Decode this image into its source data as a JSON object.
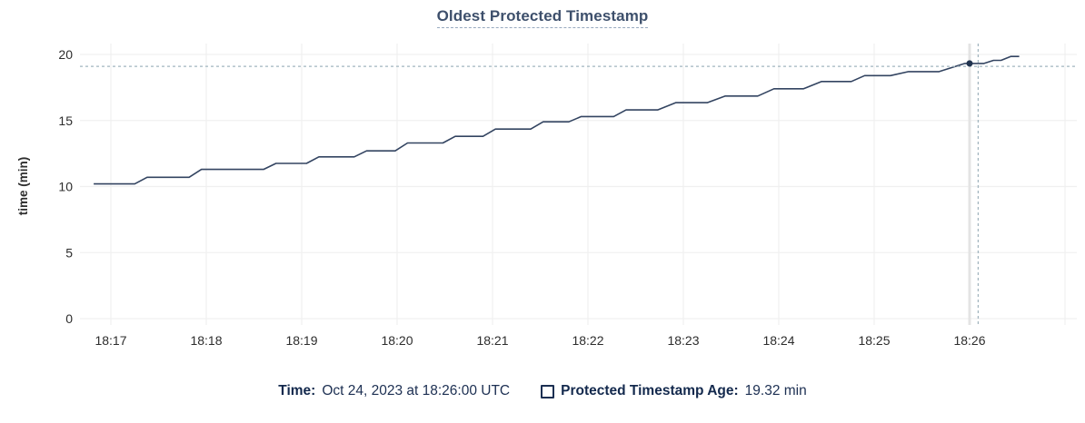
{
  "title": "Oldest Protected Timestamp",
  "colors": {
    "line": "#334461",
    "hover_dot": "#223450",
    "grid": "#f0f0f0",
    "hover_column": "#e4e4e4",
    "crosshair": "#a2b5bf",
    "axis_text": "#2d2d2d",
    "axis_title_text": "#1a1a1a",
    "title_text": "#3e506c",
    "legend_text": "#1c2f52"
  },
  "chart_data": {
    "type": "line",
    "title": "Oldest Protected Timestamp",
    "xlabel": "",
    "ylabel": "time (min)",
    "ylim": [
      0,
      20
    ],
    "y_ticks": [
      0,
      5,
      10,
      15,
      20
    ],
    "x_ticks": [
      "18:17",
      "18:18",
      "18:19",
      "18:20",
      "18:21",
      "18:22",
      "18:23",
      "18:24",
      "18:25",
      "18:26"
    ],
    "x_unit": "minutes after 18:00 UTC",
    "x_range_minutes": [
      16.82,
      26.52
    ],
    "grid": true,
    "legend_position": "bottom",
    "series": [
      {
        "name": "Protected Timestamp Age",
        "unit": "min",
        "points": [
          [
            16.82,
            10.2
          ],
          [
            17.25,
            10.2
          ],
          [
            17.38,
            10.7
          ],
          [
            17.82,
            10.7
          ],
          [
            17.95,
            11.3
          ],
          [
            18.6,
            11.3
          ],
          [
            18.73,
            11.75
          ],
          [
            19.05,
            11.75
          ],
          [
            19.18,
            12.25
          ],
          [
            19.55,
            12.25
          ],
          [
            19.68,
            12.7
          ],
          [
            19.98,
            12.7
          ],
          [
            20.11,
            13.3
          ],
          [
            20.48,
            13.3
          ],
          [
            20.61,
            13.8
          ],
          [
            20.9,
            13.8
          ],
          [
            21.03,
            14.35
          ],
          [
            21.4,
            14.35
          ],
          [
            21.53,
            14.9
          ],
          [
            21.8,
            14.9
          ],
          [
            21.93,
            15.3
          ],
          [
            22.27,
            15.3
          ],
          [
            22.4,
            15.8
          ],
          [
            22.73,
            15.8
          ],
          [
            22.92,
            16.35
          ],
          [
            23.25,
            16.35
          ],
          [
            23.44,
            16.85
          ],
          [
            23.78,
            16.85
          ],
          [
            23.95,
            17.4
          ],
          [
            24.26,
            17.4
          ],
          [
            24.45,
            17.95
          ],
          [
            24.76,
            17.95
          ],
          [
            24.9,
            18.4
          ],
          [
            25.17,
            18.4
          ],
          [
            25.36,
            18.7
          ],
          [
            25.68,
            18.7
          ],
          [
            25.95,
            19.32
          ],
          [
            26.15,
            19.32
          ],
          [
            26.25,
            19.55
          ],
          [
            26.33,
            19.55
          ],
          [
            26.43,
            19.85
          ],
          [
            26.52,
            19.85
          ]
        ]
      }
    ],
    "hover": {
      "point_minute": 26.0,
      "point_value": 19.32,
      "crosshair_minute": 26.09,
      "crosshair_value": 19.1
    }
  },
  "legend": {
    "time_label": "Time:",
    "time_value": "Oct 24, 2023 at 18:26:00 UTC",
    "series_label": "Protected Timestamp Age:",
    "series_value": "19.32 min"
  }
}
